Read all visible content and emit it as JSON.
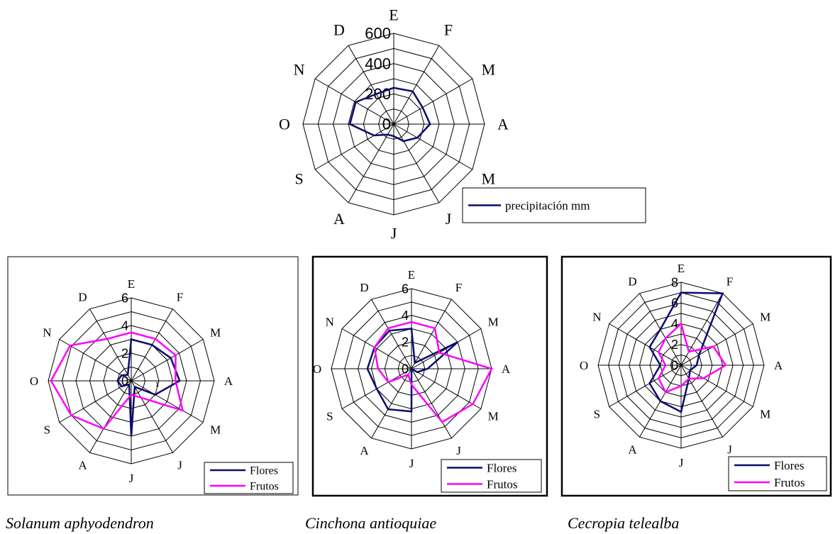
{
  "colors": {
    "flores": "#0b0b6e",
    "frutos": "#ff00ff",
    "precip": "#0b0b6e",
    "grid": "#000000"
  },
  "species_labels": [
    "Solanum aphyodendron",
    "Cinchona antioquiae",
    "Cecropia telealba"
  ],
  "chart_data": [
    {
      "type": "radar",
      "categories": [
        "E",
        "F",
        "M",
        "A",
        "M",
        "J",
        "J",
        "A",
        "S",
        "O",
        "N",
        "D"
      ],
      "r_ticks": [
        "0",
        "200",
        "400",
        "600"
      ],
      "rlim": [
        0,
        600
      ],
      "legend_position": "bottom-right",
      "series": [
        {
          "name": "precipitación mm",
          "values": [
            240,
            250,
            220,
            240,
            180,
            130,
            80,
            80,
            150,
            290,
            290,
            230
          ]
        }
      ]
    },
    {
      "type": "radar",
      "categories": [
        "E",
        "F",
        "M",
        "A",
        "M",
        "J",
        "J",
        "A",
        "S",
        "O",
        "N",
        "D"
      ],
      "r_ticks": [
        "0",
        "2",
        "4",
        "6"
      ],
      "extra_tick": "1",
      "rlim": [
        0,
        6
      ],
      "legend_position": "bottom-right",
      "series": [
        {
          "name": "Flores",
          "values": [
            3,
            3,
            3.3,
            3.5,
            2,
            0.5,
            4,
            0.3,
            0.8,
            1,
            0.8,
            0.5
          ]
        },
        {
          "name": "Frutos",
          "values": [
            3.5,
            3.5,
            3.7,
            3.2,
            4.3,
            1.4,
            1,
            4,
            5,
            5.8,
            5.1,
            3.5
          ]
        }
      ]
    },
    {
      "type": "radar",
      "categories": [
        "E",
        "F",
        "M",
        "A",
        "M",
        "J",
        "J",
        "A",
        "S",
        "O",
        "N",
        "D"
      ],
      "r_ticks": [
        "0",
        "2",
        "4",
        "6"
      ],
      "rlim": [
        0,
        6
      ],
      "legend_position": "bottom-right",
      "series": [
        {
          "name": "Flores",
          "values": [
            3,
            0.5,
            4,
            1.2,
            0.5,
            0,
            3.2,
            3.5,
            3,
            3.3,
            3.2,
            3.3
          ]
        },
        {
          "name": "Frutos",
          "values": [
            3.5,
            3.5,
            2.4,
            6,
            5.3,
            4.6,
            1.2,
            0.5,
            2,
            2.5,
            3.2,
            3.5
          ]
        }
      ]
    },
    {
      "type": "radar",
      "categories": [
        "E",
        "F",
        "M",
        "A",
        "M",
        "J",
        "J",
        "A",
        "S",
        "O",
        "N",
        "D"
      ],
      "r_ticks": [
        "0",
        "2",
        "4",
        "6",
        "8"
      ],
      "rlim": [
        0,
        8
      ],
      "legend_position": "bottom-right",
      "series": [
        {
          "name": "Flores",
          "values": [
            7,
            8,
            2,
            1.5,
            1,
            1.5,
            4.5,
            4,
            3.5,
            2,
            3.5,
            4
          ]
        },
        {
          "name": "Frutos",
          "values": [
            4,
            1.5,
            3.6,
            4.3,
            2.5,
            1.5,
            2,
            3,
            2.5,
            1.5,
            2.5,
            3
          ]
        }
      ]
    }
  ]
}
